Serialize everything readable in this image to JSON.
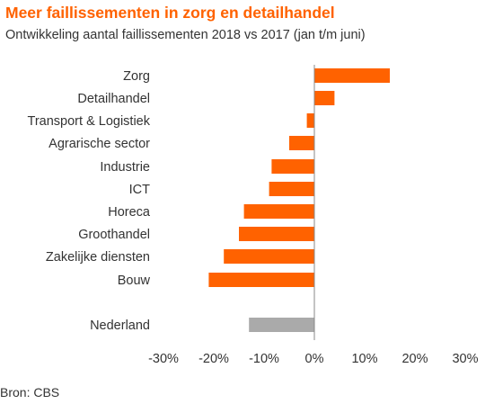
{
  "title": "Meer faillissementen in zorg en detailhandel",
  "subtitle": "Ontwikkeling aantal faillissementen 2018 vs 2017 (jan t/m juni)",
  "source": "Bron: CBS",
  "colors": {
    "accent": "#ff6200",
    "bar": "#ff6200",
    "total_bar": "#aaaaaa",
    "axis": "#888888",
    "text": "#333333"
  },
  "chart_data": {
    "type": "bar",
    "orientation": "horizontal",
    "title": "Meer faillissementen in zorg en detailhandel",
    "subtitle": "Ontwikkeling aantal faillissementen 2018 vs 2017 (jan t/m juni)",
    "categories": [
      "Zorg",
      "Detailhandel",
      "Transport & Logistiek",
      "Agrarische sector",
      "Industrie",
      "ICT",
      "Horeca",
      "Groothandel",
      "Zakelijke diensten",
      "Bouw",
      "Nederland"
    ],
    "values": [
      15,
      4,
      -1.5,
      -5,
      -8.5,
      -9,
      -14,
      -15,
      -18,
      -21,
      -13
    ],
    "unit": "%",
    "xlim": [
      -30,
      30
    ],
    "xticks": [
      -30,
      -20,
      -10,
      0,
      10,
      20,
      30
    ],
    "xtick_labels": [
      "-30%",
      "-20%",
      "-10%",
      "0%",
      "10%",
      "20%",
      "30%"
    ],
    "highlight": {
      "category": "Nederland",
      "color": "#aaaaaa"
    },
    "grid": false,
    "legend": "none"
  }
}
